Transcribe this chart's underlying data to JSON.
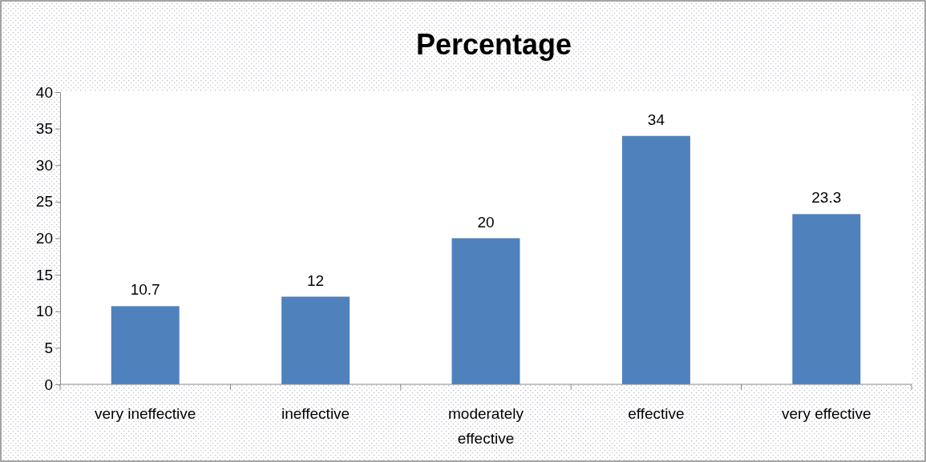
{
  "chart_data": {
    "type": "bar",
    "title": "Percentage",
    "categories": [
      "very ineffective",
      "ineffective",
      "moderately effective",
      "effective",
      "very effective"
    ],
    "values": [
      10.7,
      12,
      20,
      34,
      23.3
    ],
    "color": "#4f81bd",
    "ylim": [
      0,
      40
    ],
    "yticks": [
      0,
      5,
      10,
      15,
      20,
      25,
      30,
      35,
      40
    ],
    "grid": false,
    "data_labels": true
  }
}
